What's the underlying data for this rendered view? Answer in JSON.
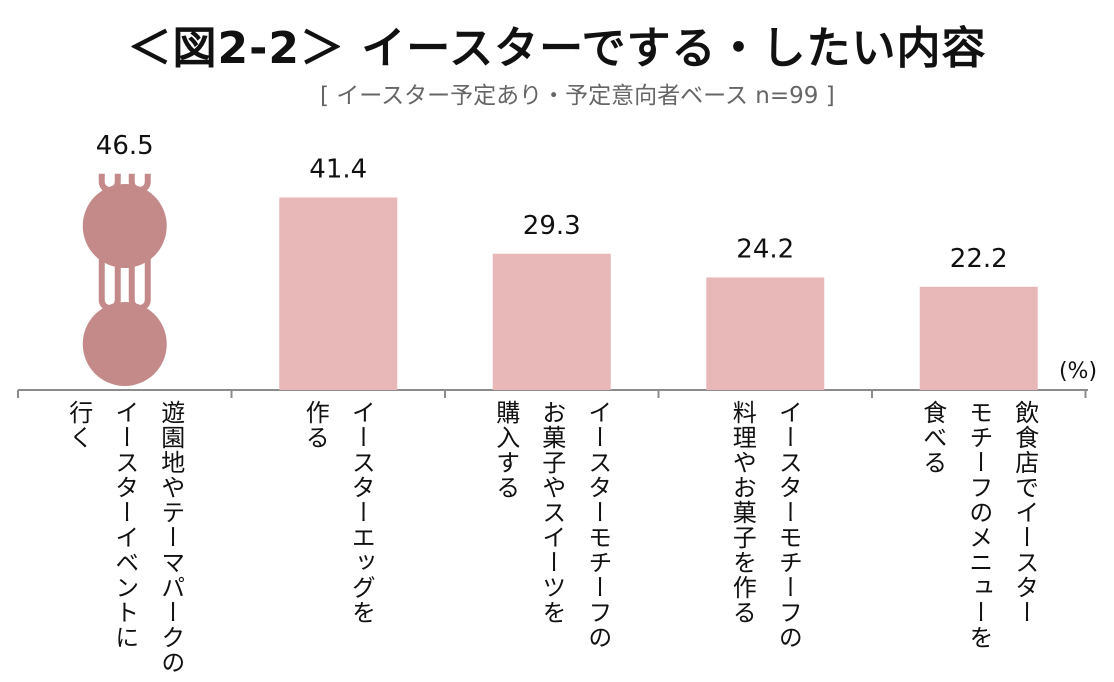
{
  "title": "＜図2-2＞ イースターでする・したい内容",
  "subtitle": "[ イースター予定あり・予定意向者ベース n=99 ]",
  "chart_data": {
    "type": "bar",
    "title": "＜図2-2＞ イースターでする・したい内容",
    "subtitle": "[ イースター予定あり・予定意向者ベース n=99 ]",
    "unit_label": "(%)",
    "categories": [
      [
        "遊園地やテーマパークの",
        "イースターイベントに",
        "行く"
      ],
      [
        "イースターエッグを",
        "作る"
      ],
      [
        "イースターモチーフの",
        "お菓子やスイーツを",
        "購入する"
      ],
      [
        "イースターモチーフの",
        "料理やお菓子を作る"
      ],
      [
        "飲食店でイースター",
        "モチーフのメニューを",
        "食べる"
      ]
    ],
    "values": [
      46.5,
      41.4,
      29.3,
      24.2,
      22.2
    ],
    "value_labels": [
      "46.5",
      "41.4",
      "29.3",
      "24.2",
      "22.2"
    ],
    "ylim": [
      0,
      50
    ],
    "grid": false,
    "colors": {
      "bar": "#e8b8b8",
      "highlight": "#c48a8a",
      "axis": "#8c8c8c"
    },
    "highlight_icon": "bunny-icon"
  }
}
